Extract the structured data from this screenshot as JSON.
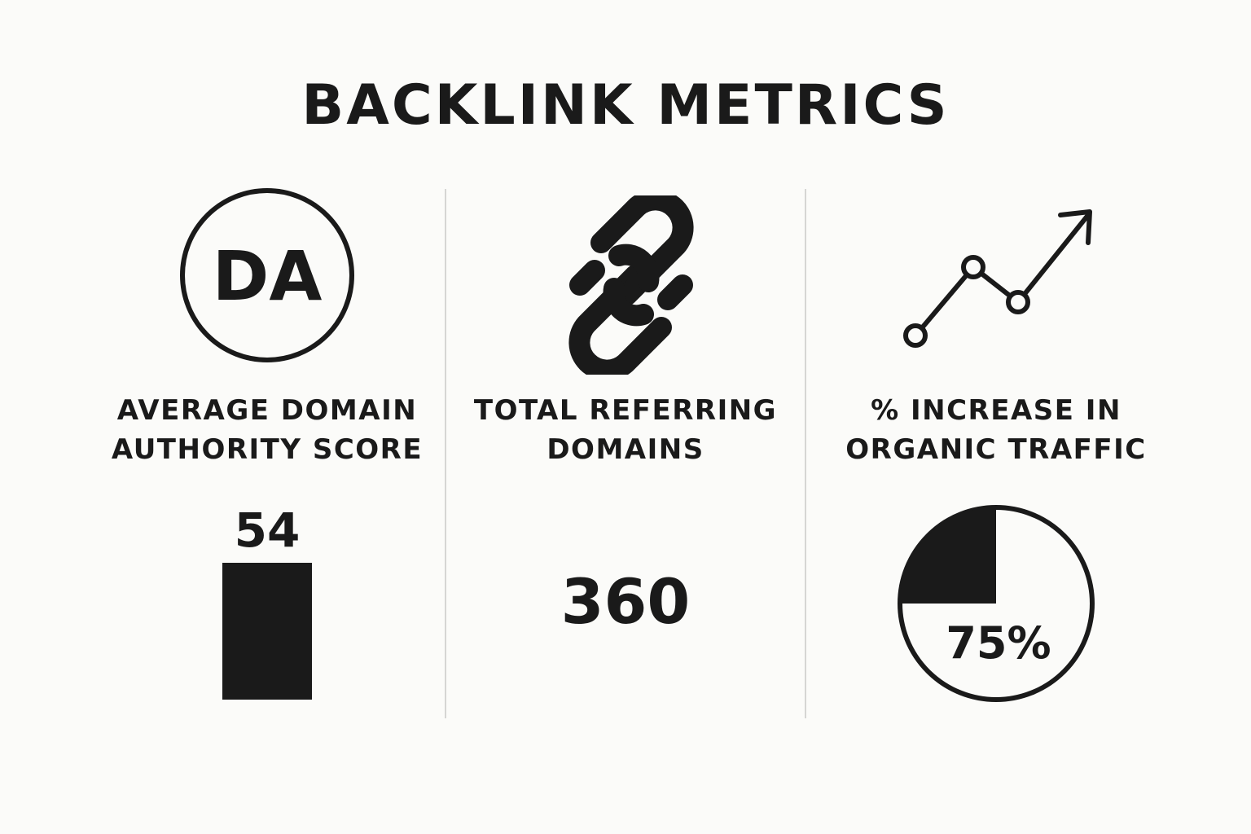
{
  "title": "BACKLINK METRICS",
  "metrics": [
    {
      "icon": "da-circle-icon",
      "icon_text": "DA",
      "label_lines": [
        "AVERAGE DOMAIN",
        "AUTHORITY SCORE"
      ],
      "value_text": "54",
      "value": 54
    },
    {
      "icon": "chain-link-icon",
      "label_lines": [
        "TOTAL REFERRING",
        "DOMAINS"
      ],
      "value_text": "360",
      "value": 360
    },
    {
      "icon": "trend-up-arrow-icon",
      "label_lines": [
        "% INCREASE IN",
        "ORGANIC TRAFFIC"
      ],
      "value_text": "75%",
      "value": 75
    }
  ],
  "colors": {
    "background": "#fbfbf9",
    "ink": "#1a1a1a",
    "divider": "#d6d6d4"
  }
}
